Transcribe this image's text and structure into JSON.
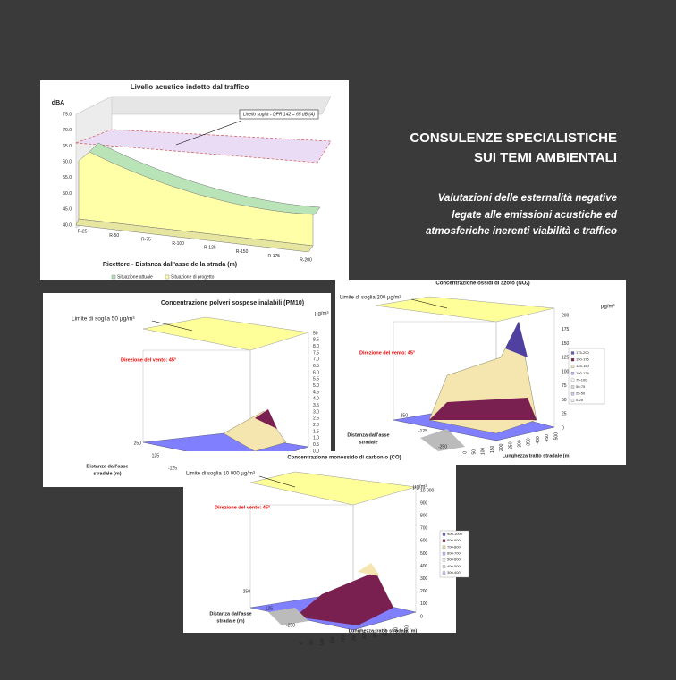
{
  "heading": {
    "lines": [
      "CONSULENZE SPECIALISTICHE",
      "SUI TEMI AMBIENTALI"
    ],
    "sub": [
      "Valutazioni delle esternalità negative",
      "legate alle emissioni acustiche ed",
      "atmosferiche inerenti viabilità e traffico"
    ]
  },
  "noise": {
    "title": "Livello acustico indotto dal traffico",
    "unit": "dBA",
    "threshold": "Livello soglia - DPR 142 = 65 dB (A)",
    "yticks": [
      "75.0",
      "70.0",
      "65.0",
      "60.0",
      "55.0",
      "50.0",
      "45.0",
      "40.0"
    ],
    "categories": [
      "R-25",
      "R-50",
      "R-75",
      "R-100",
      "R-125",
      "R-150",
      "R-175",
      "R-200"
    ],
    "xlabel": "Ricettore - Distanza dall'asse della strada (m)",
    "legend": [
      "Situazione attuale",
      "Situazione di progetto"
    ]
  },
  "pm10": {
    "title": "Concentrazione polveri sospese inalabili (PM10)",
    "limit": "Limite di soglia 50 µg/m³",
    "unit": "µg/m³",
    "wind": "Direzione del vento: 45°",
    "yticks": [
      "50",
      "8.5",
      "8.0",
      "7.5",
      "7.0",
      "6.5",
      "6.0",
      "5.5",
      "5.0",
      "4.5",
      "4.0",
      "3.5",
      "3.0",
      "2.5",
      "2.0",
      "1.5",
      "1.0",
      "0.5",
      "0.0"
    ],
    "yticks_depth": [
      "250",
      "125",
      "-125"
    ],
    "ylabel": [
      "Distanza dall'asse",
      "stradale (m)"
    ]
  },
  "nox": {
    "title": "Concentrazione ossidi di azoto (NOₓ)",
    "limit": "Limite di soglia 200 µg/m³",
    "unit": "µg/m³",
    "wind": "Direzione del vento: 45°",
    "yticks": [
      "200",
      "175",
      "150",
      "125",
      "100",
      "75",
      "50",
      "25",
      "0"
    ],
    "legend": [
      "175-200",
      "150-175",
      "125-150",
      "100-125",
      "75-100",
      "50-75",
      "25-50",
      "0-25"
    ],
    "yticks_depth": [
      "250",
      "-125",
      "-250"
    ],
    "ylabel": [
      "Distanza dall'asse",
      "stradale"
    ],
    "xticks": [
      "0",
      "50",
      "100",
      "150",
      "200",
      "250",
      "300",
      "350",
      "400",
      "450",
      "500"
    ],
    "xlabel": "Lunghezza tratto stradale (m)"
  },
  "co": {
    "title": "Concentrazione monossido di carbonio (CO)",
    "limit": "Limite di soglia 10 000 µg/m³",
    "unit": "µg/m³",
    "wind": "Direzione del vento: 45°",
    "yticks": [
      "10 000",
      "900",
      "800",
      "700",
      "600",
      "500",
      "400",
      "300",
      "200",
      "100",
      "0"
    ],
    "legend": [
      "900-1000",
      "800-900",
      "700-800",
      "600-700",
      "500-600",
      "400-500",
      "300-400"
    ],
    "yticks_depth": [
      "250",
      "125",
      "-250"
    ],
    "ylabel": [
      "Distanza dall'asse",
      "stradale (m)"
    ],
    "xticks": [
      "0",
      "50",
      "100",
      "150",
      "200",
      "250",
      "300",
      "350",
      "400",
      "450",
      "500"
    ],
    "xlabel": "Lunghezza tratto stradale (m)"
  }
}
